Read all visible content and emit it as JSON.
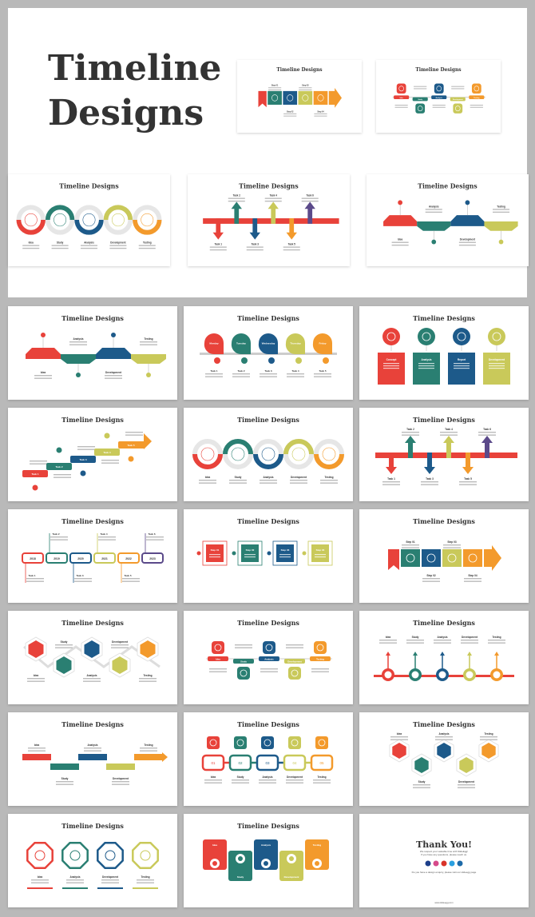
{
  "cover": {
    "title_line1": "Timeline",
    "title_line2": "Designs"
  },
  "colors": {
    "red": "#e8423a",
    "teal": "#2a7f72",
    "blue": "#1d5a8a",
    "lime": "#c9c95a",
    "orange": "#f39a2c",
    "purple": "#5b4a8a",
    "gray": "#e6e6e6",
    "text": "#333333"
  },
  "cover_slides": [
    {
      "type": "ribbon",
      "title": "Timeline Designs",
      "labels": [
        "Step 01",
        "Step 02",
        "Step 03",
        "Step 04"
      ]
    },
    {
      "type": "squaresWave",
      "title": "Timeline Designs",
      "labels": [
        "Idea",
        "Study",
        "Analysis",
        "Development",
        "Testing"
      ]
    },
    {
      "type": "wave",
      "title": "Timeline Designs",
      "labels": [
        "Idea",
        "Study",
        "Analysis",
        "Development",
        "Testing"
      ]
    },
    {
      "type": "arrows",
      "title": "Timeline Designs",
      "labels": [
        "Task 1",
        "Task 2",
        "Task 3",
        "Task 4",
        "Task 5",
        "Task 6"
      ]
    },
    {
      "type": "pentagon",
      "title": "Timeline Designs",
      "labels": [
        "Idea",
        "Analysis",
        "Development",
        "Testing"
      ]
    }
  ],
  "slides": [
    {
      "type": "pentagon",
      "title": "Timeline Designs",
      "labels": [
        "Idea",
        "Analysis",
        "Development",
        "Testing"
      ]
    },
    {
      "type": "teardrop",
      "title": "Timeline Designs",
      "labels": [
        "Monday",
        "Tuesday",
        "Wednesday",
        "Thursday",
        "Friday"
      ],
      "sublabels": [
        "Task 1",
        "Task 2",
        "Task 3",
        "Task 4",
        "Task 5"
      ]
    },
    {
      "type": "circleBoxes",
      "title": "Timeline Designs",
      "labels": [
        "Concept",
        "Analysis",
        "Report",
        "Development"
      ]
    },
    {
      "type": "stairs",
      "title": "Timeline Designs",
      "labels": [
        "Task 1",
        "Task 2",
        "Task 3",
        "Task 4",
        "Task 5"
      ]
    },
    {
      "type": "wave",
      "title": "Timeline Designs",
      "labels": [
        "Idea",
        "Study",
        "Analysis",
        "Development",
        "Testing"
      ]
    },
    {
      "type": "arrows",
      "title": "Timeline Designs",
      "labels": [
        "Task 1",
        "Task 2",
        "Task 3",
        "Task 4",
        "Task 5",
        "Task 6"
      ]
    },
    {
      "type": "years",
      "title": "Timeline Designs",
      "labels": [
        "2018",
        "2019",
        "2020",
        "2021",
        "2022",
        "2023"
      ],
      "sublabels": [
        "Task 1",
        "Task 2",
        "Task 3",
        "Task 4",
        "Task 5",
        "Task 6"
      ]
    },
    {
      "type": "frames",
      "title": "Timeline Designs",
      "labels": [
        "Step 01",
        "Step 02",
        "Step 03",
        "Step 04"
      ]
    },
    {
      "type": "ribbon",
      "title": "Timeline Designs",
      "labels": [
        "Step 01",
        "Step 02",
        "Step 03",
        "Step 04"
      ]
    },
    {
      "type": "hexZig",
      "title": "Timeline Designs",
      "labels": [
        "Idea",
        "Study",
        "Analysis",
        "Development",
        "Testing"
      ]
    },
    {
      "type": "squaresWave",
      "title": "Timeline Designs",
      "labels": [
        "Idea",
        "Study",
        "Analysis",
        "Development",
        "Testing"
      ]
    },
    {
      "type": "pinsLine",
      "title": "Timeline Designs",
      "labels": [
        "Idea",
        "Study",
        "Analysis",
        "Development",
        "Testing"
      ]
    },
    {
      "type": "zigBand",
      "title": "Timeline Designs",
      "labels": [
        "Idea",
        "Study",
        "Analysis",
        "Development",
        "Testing"
      ]
    },
    {
      "type": "numbered",
      "title": "Timeline Designs",
      "labels": [
        "Idea",
        "Study",
        "Analysis",
        "Development",
        "Testing"
      ],
      "sublabels": [
        "01",
        "02",
        "03",
        "04",
        "05"
      ]
    },
    {
      "type": "honeycomb",
      "title": "Timeline Designs",
      "labels": [
        "Idea",
        "Study",
        "Analysis",
        "Development",
        "Testing"
      ]
    },
    {
      "type": "octagons",
      "title": "Timeline Designs",
      "labels": [
        "Idea",
        "Analysis",
        "Development",
        "Testing"
      ]
    },
    {
      "type": "folded",
      "title": "Timeline Designs",
      "labels": [
        "Idea",
        "Study",
        "Analysis",
        "Development",
        "Testing"
      ]
    },
    {
      "type": "thanks",
      "title": "Thank You!",
      "labels": [
        "We respect your valuable time with SlideEgg!",
        "If you have any questions, please reach us.",
        "Do you have a design enquiry, please visit our slideegg page",
        "www.slideegg.com"
      ]
    }
  ]
}
